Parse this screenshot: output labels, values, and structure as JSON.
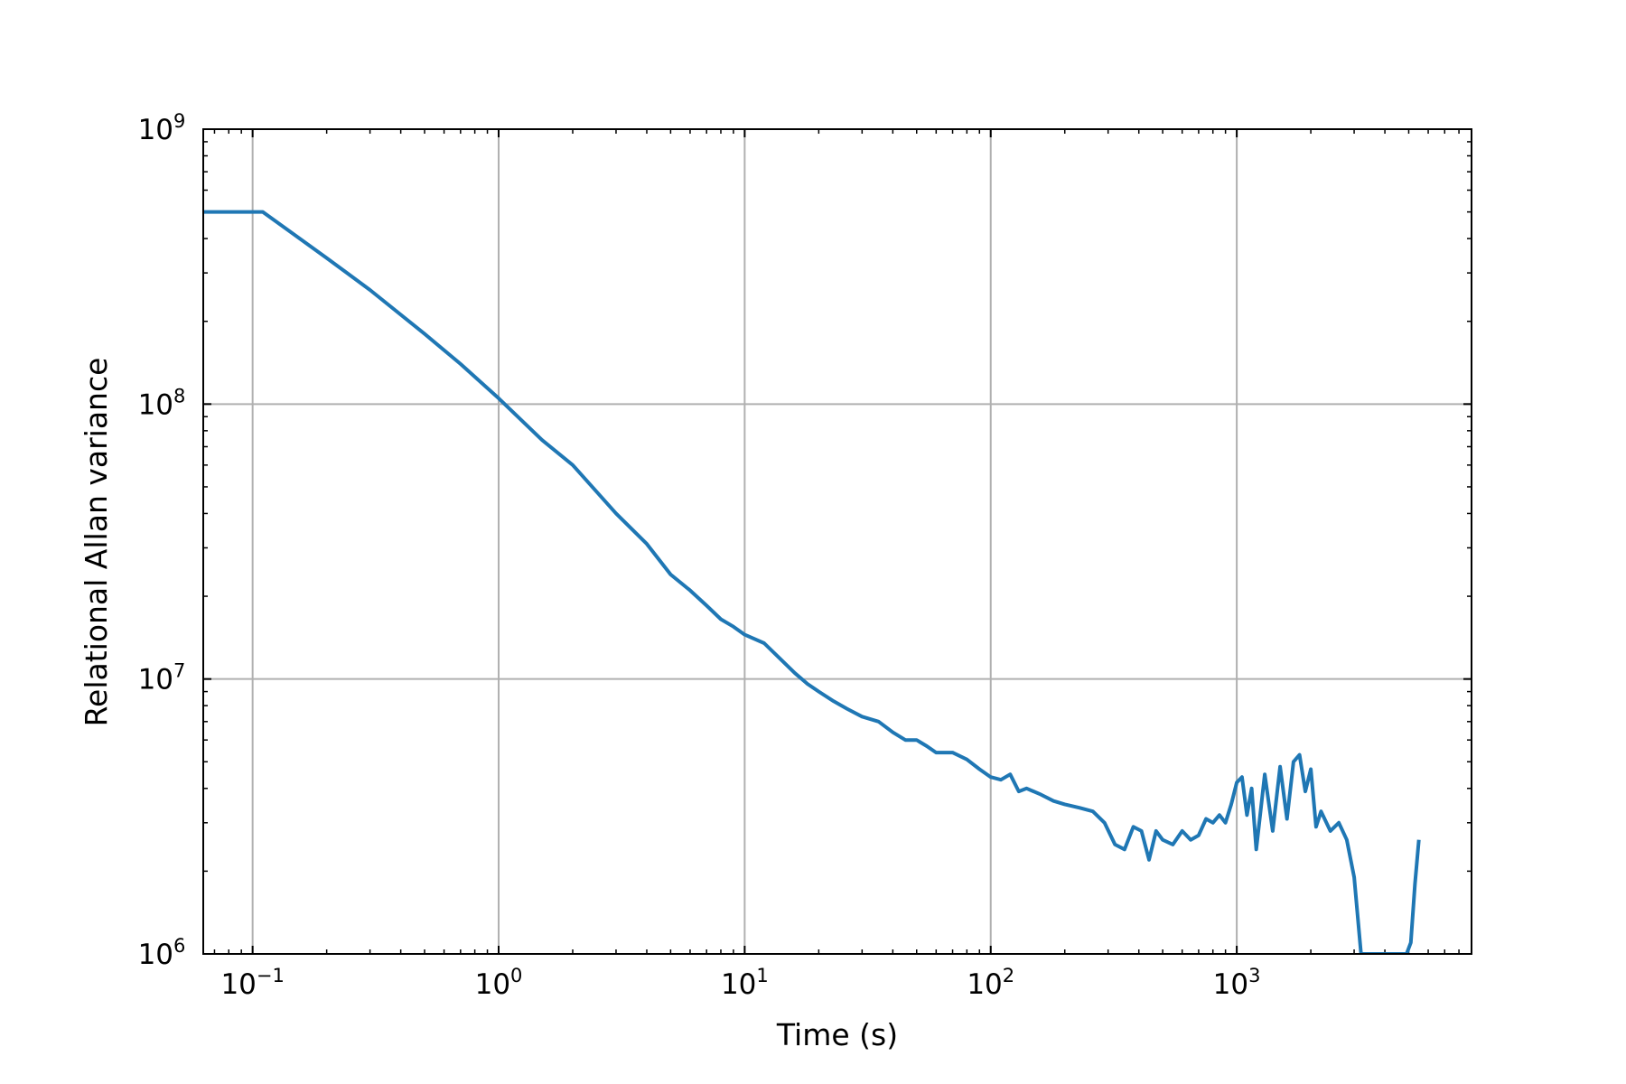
{
  "chart_data": {
    "type": "line",
    "title": "",
    "xlabel": "Time (s)",
    "ylabel": "Relational Allan variance",
    "x_scale": "log",
    "y_scale": "log",
    "xlim": [
      0.063,
      9000
    ],
    "ylim": [
      1000000,
      1000000000
    ],
    "grid": true,
    "color": "#1f77b4",
    "x_ticks": [
      {
        "value": 0.1,
        "base": "10",
        "exp": "−1"
      },
      {
        "value": 1,
        "base": "10",
        "exp": "0"
      },
      {
        "value": 10,
        "base": "10",
        "exp": "1"
      },
      {
        "value": 100,
        "base": "10",
        "exp": "2"
      },
      {
        "value": 1000,
        "base": "10",
        "exp": "3"
      }
    ],
    "y_ticks": [
      {
        "value": 1000000,
        "base": "10",
        "exp": "6"
      },
      {
        "value": 10000000,
        "base": "10",
        "exp": "7"
      },
      {
        "value": 100000000,
        "base": "10",
        "exp": "8"
      },
      {
        "value": 1000000000,
        "base": "10",
        "exp": "9"
      }
    ],
    "series": [
      {
        "x": [
          0.063,
          0.1,
          0.11,
          0.2,
          0.3,
          0.5,
          0.7,
          1.0,
          1.5,
          2,
          3,
          4,
          5,
          6,
          7,
          8,
          9,
          10,
          12,
          14,
          16,
          18,
          20,
          23,
          26,
          30,
          35,
          40,
          45,
          50,
          55,
          60,
          70,
          80,
          90,
          100,
          110,
          120,
          130,
          140,
          160,
          180,
          200,
          230,
          260,
          290,
          320,
          350,
          380,
          410,
          440,
          470,
          500,
          550,
          600,
          650,
          700,
          750,
          800,
          850,
          900,
          950,
          1000,
          1050,
          1100,
          1150,
          1200,
          1300,
          1400,
          1500,
          1600,
          1700,
          1800,
          1900,
          2000,
          2100,
          2200,
          2400,
          2600,
          2800,
          3000,
          3200,
          3400,
          3600,
          4900,
          5100,
          5300,
          5500
        ],
        "y": [
          500000000,
          500000000,
          500000000,
          340000000,
          260000000,
          180000000,
          140000000,
          105000000,
          74000000,
          60000000,
          40000000,
          31000000,
          24000000,
          21000000,
          18500000,
          16500000,
          15500000,
          14500000,
          13500000,
          11800000,
          10500000,
          9600000,
          9000000,
          8300000,
          7800000,
          7300000,
          7000000,
          6400000,
          6000000,
          6000000,
          5700000,
          5400000,
          5400000,
          5100000,
          4700000,
          4400000,
          4300000,
          4500000,
          3900000,
          4000000,
          3800000,
          3600000,
          3500000,
          3400000,
          3300000,
          3000000,
          2500000,
          2400000,
          2900000,
          2800000,
          2200000,
          2800000,
          2600000,
          2500000,
          2800000,
          2600000,
          2700000,
          3100000,
          3000000,
          3200000,
          3000000,
          3500000,
          4200000,
          4400000,
          3200000,
          4000000,
          2400000,
          4500000,
          2800000,
          4800000,
          3100000,
          5000000,
          5300000,
          3900000,
          4700000,
          2900000,
          3300000,
          2800000,
          3000000,
          2600000,
          1900000,
          1000000,
          1000000,
          1000000,
          1000000,
          1100000,
          1800000,
          2600000
        ]
      }
    ]
  }
}
